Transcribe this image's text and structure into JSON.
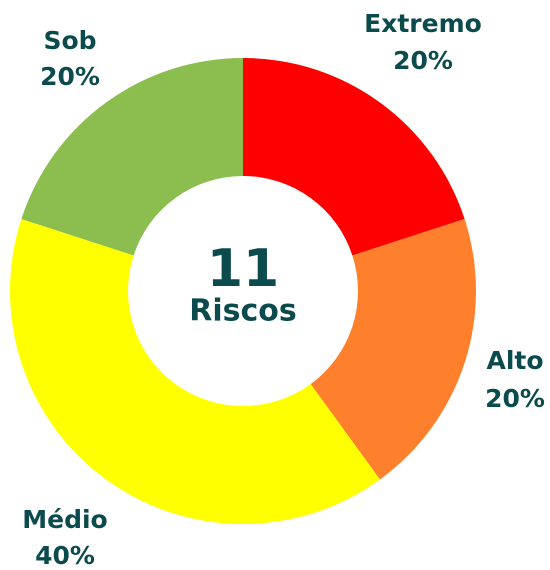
{
  "chart_data": {
    "type": "donut",
    "center_value": "11",
    "center_label": "Riscos",
    "categories": [
      "Extremo",
      "Alto",
      "Médio",
      "Sob"
    ],
    "values": [
      20,
      20,
      40,
      20
    ],
    "value_labels": [
      "20%",
      "20%",
      "40%",
      "20%"
    ],
    "colors": [
      "#ff0000",
      "#fe7f2c",
      "#ffff00",
      "#8bbd4f"
    ]
  }
}
